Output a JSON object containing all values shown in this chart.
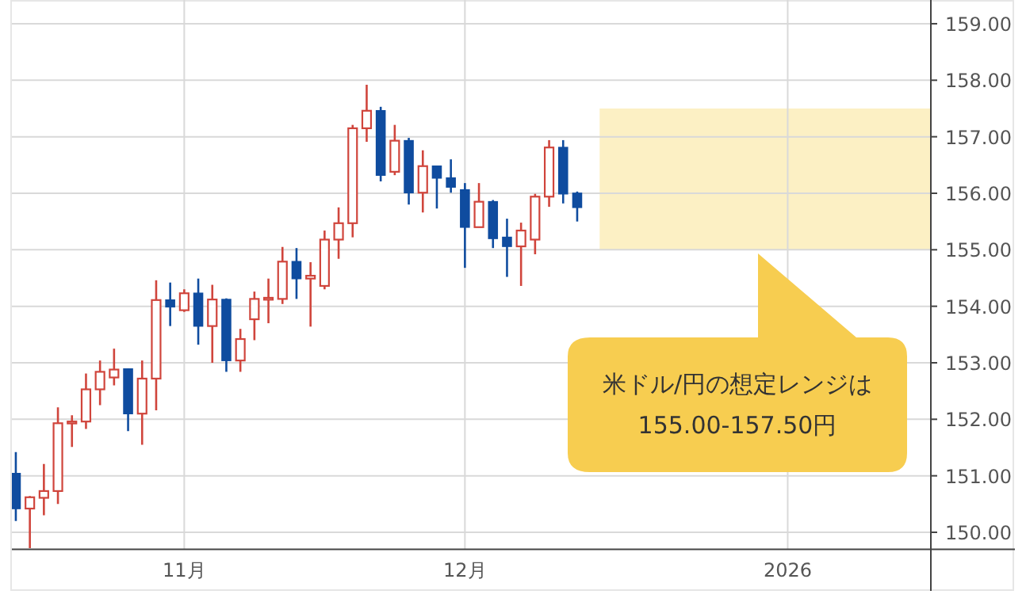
{
  "chart_data": {
    "type": "candlestick",
    "categories": [
      null,
      null,
      null,
      null,
      null,
      null,
      null,
      null,
      null,
      null,
      null,
      null,
      "11月",
      null,
      null,
      null,
      null,
      null,
      null,
      null,
      null,
      null,
      null,
      null,
      null,
      null,
      null,
      null,
      null,
      null,
      null,
      null,
      "12月",
      null,
      null,
      null,
      null,
      null,
      null,
      null,
      null,
      null,
      null,
      null,
      null,
      null,
      null,
      null,
      null,
      null,
      null,
      null,
      null,
      null,
      null,
      "2026",
      null,
      null,
      null,
      null,
      null,
      null,
      null,
      null,
      null,
      null
    ],
    "ohlc": [
      [
        151.04,
        151.42,
        150.2,
        150.42
      ],
      [
        150.42,
        150.64,
        149.72,
        150.62
      ],
      [
        150.61,
        151.21,
        150.3,
        150.73
      ],
      [
        150.73,
        152.21,
        150.5,
        151.93
      ],
      [
        151.93,
        152.07,
        151.51,
        151.96
      ],
      [
        151.96,
        152.81,
        151.83,
        152.53
      ],
      [
        152.53,
        153.04,
        152.25,
        152.84
      ],
      [
        152.74,
        153.25,
        152.6,
        152.88
      ],
      [
        152.89,
        152.9,
        151.79,
        152.1
      ],
      [
        152.1,
        153.04,
        151.55,
        152.72
      ],
      [
        152.72,
        154.46,
        152.16,
        154.11
      ],
      [
        154.11,
        154.42,
        153.65,
        153.99
      ],
      [
        153.93,
        154.3,
        153.9,
        154.23
      ],
      [
        154.23,
        154.49,
        153.32,
        153.65
      ],
      [
        153.65,
        154.38,
        153.0,
        154.12
      ],
      [
        154.12,
        154.14,
        152.84,
        153.04
      ],
      [
        153.04,
        153.6,
        152.84,
        153.42
      ],
      [
        153.77,
        154.26,
        153.4,
        154.13
      ],
      [
        154.13,
        154.49,
        153.7,
        154.15
      ],
      [
        154.13,
        155.05,
        154.04,
        154.79
      ],
      [
        154.79,
        155.03,
        154.13,
        154.49
      ],
      [
        154.49,
        154.78,
        153.64,
        154.54
      ],
      [
        154.36,
        155.34,
        154.3,
        155.18
      ],
      [
        155.18,
        155.75,
        154.84,
        155.47
      ],
      [
        155.47,
        157.21,
        155.22,
        157.15
      ],
      [
        157.15,
        157.92,
        156.91,
        157.46
      ],
      [
        157.46,
        157.53,
        156.21,
        156.32
      ],
      [
        156.38,
        157.21,
        156.32,
        156.93
      ],
      [
        156.93,
        156.98,
        155.8,
        156.01
      ],
      [
        156.01,
        156.76,
        155.66,
        156.48
      ],
      [
        156.48,
        156.48,
        155.73,
        156.27
      ],
      [
        156.27,
        156.6,
        156.01,
        156.11
      ],
      [
        156.06,
        156.18,
        154.68,
        155.4
      ],
      [
        155.4,
        156.18,
        155.4,
        155.85
      ],
      [
        155.85,
        155.88,
        155.03,
        155.2
      ],
      [
        155.22,
        155.55,
        154.52,
        155.06
      ],
      [
        155.06,
        155.48,
        154.36,
        155.34
      ],
      [
        155.18,
        155.99,
        154.92,
        155.94
      ],
      [
        155.94,
        156.94,
        155.76,
        156.81
      ],
      [
        156.81,
        156.94,
        155.82,
        155.99
      ],
      [
        156.0,
        156.03,
        155.5,
        155.75
      ],
      null,
      null,
      null,
      null,
      null,
      null,
      null,
      null,
      null,
      null,
      null,
      null,
      null,
      null,
      null,
      null,
      null,
      null,
      null,
      null,
      null,
      null,
      null,
      null,
      null
    ],
    "colors": [
      "#0f4c9f",
      "#d0453c",
      "#d0453c",
      "#d0453c",
      "#d0453c",
      "#d0453c",
      "#d0453c",
      "#d0453c",
      "#0f4c9f",
      "#d0453c",
      "#d0453c",
      "#0f4c9f",
      "#d0453c",
      "#0f4c9f",
      "#d0453c",
      "#0f4c9f",
      "#d0453c",
      "#d0453c",
      "#d0453c",
      "#d0453c",
      "#0f4c9f",
      "#d0453c",
      "#d0453c",
      "#d0453c",
      "#d0453c",
      "#d0453c",
      "#0f4c9f",
      "#d0453c",
      "#0f4c9f",
      "#d0453c",
      "#0f4c9f",
      "#0f4c9f",
      "#0f4c9f",
      "#d0453c",
      "#0f4c9f",
      "#0f4c9f",
      "#d0453c",
      "#d0453c",
      "#d0453c",
      "#0f4c9f",
      "#0f4c9f",
      null,
      null,
      null,
      null,
      null,
      null,
      null,
      null,
      null,
      null,
      null,
      null,
      null,
      null,
      null,
      null,
      null,
      null,
      null,
      null,
      null,
      null,
      null,
      null,
      null
    ],
    "ylim": [
      149.7,
      159.42
    ],
    "yticks": [
      {
        "value": 150,
        "label": "150.00"
      },
      {
        "value": 151,
        "label": "151.00"
      },
      {
        "value": 152,
        "label": "152.00"
      },
      {
        "value": 153,
        "label": "153.00"
      },
      {
        "value": 154,
        "label": "154.00"
      },
      {
        "value": 155,
        "label": "155.00"
      },
      {
        "value": 156,
        "label": "156.00"
      },
      {
        "value": 157,
        "label": "157.00"
      },
      {
        "value": 158,
        "label": "158.00"
      },
      {
        "value": 159,
        "label": "159.00"
      }
    ],
    "grid": true,
    "bands": [
      {
        "axis": "y",
        "from": 155.0,
        "to": 157.5,
        "color": "#fcf0c4"
      }
    ],
    "annotations": [
      "米ドル/円の想定レンジは\n155.00-157.50円"
    ]
  }
}
